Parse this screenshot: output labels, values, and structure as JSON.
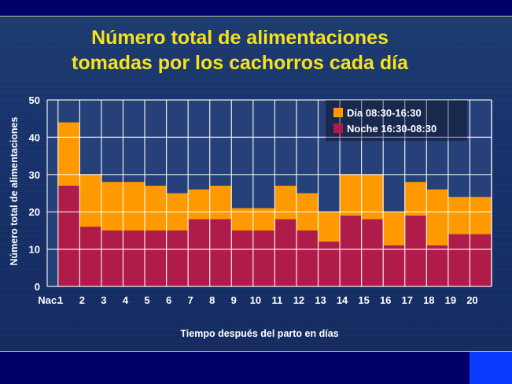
{
  "chart_data": {
    "type": "area",
    "title_lines": [
      "Número total de alimentaciones",
      "tomadas por los cachorros cada día"
    ],
    "xlabel": "Tiempo después del parto en días",
    "ylabel": "Número total de alimentaciones",
    "x_tick_prefix": "Nac.",
    "categories": [
      "1",
      "2",
      "3",
      "4",
      "5",
      "6",
      "7",
      "8",
      "9",
      "10",
      "11",
      "12",
      "13",
      "14",
      "15",
      "16",
      "17",
      "18",
      "19",
      "20"
    ],
    "ylim": [
      0,
      50
    ],
    "yticks": [
      "0",
      "10",
      "20",
      "30",
      "40",
      "50"
    ],
    "grid": true,
    "legend_position": "top-right",
    "stacked": true,
    "series": [
      {
        "name": "Noche 16:30-08:30",
        "color": "#b01c4a",
        "values": [
          27,
          16,
          15,
          15,
          15,
          15,
          18,
          18,
          15,
          15,
          18,
          15,
          12,
          19,
          18,
          11,
          19,
          11,
          14,
          14
        ]
      },
      {
        "name": "Día 08:30-16:30",
        "color": "#ff9900",
        "values": [
          17,
          14,
          13,
          13,
          12,
          10,
          8,
          9,
          6,
          6,
          9,
          10,
          8,
          11,
          12,
          9,
          9,
          15,
          10,
          10
        ]
      }
    ]
  }
}
